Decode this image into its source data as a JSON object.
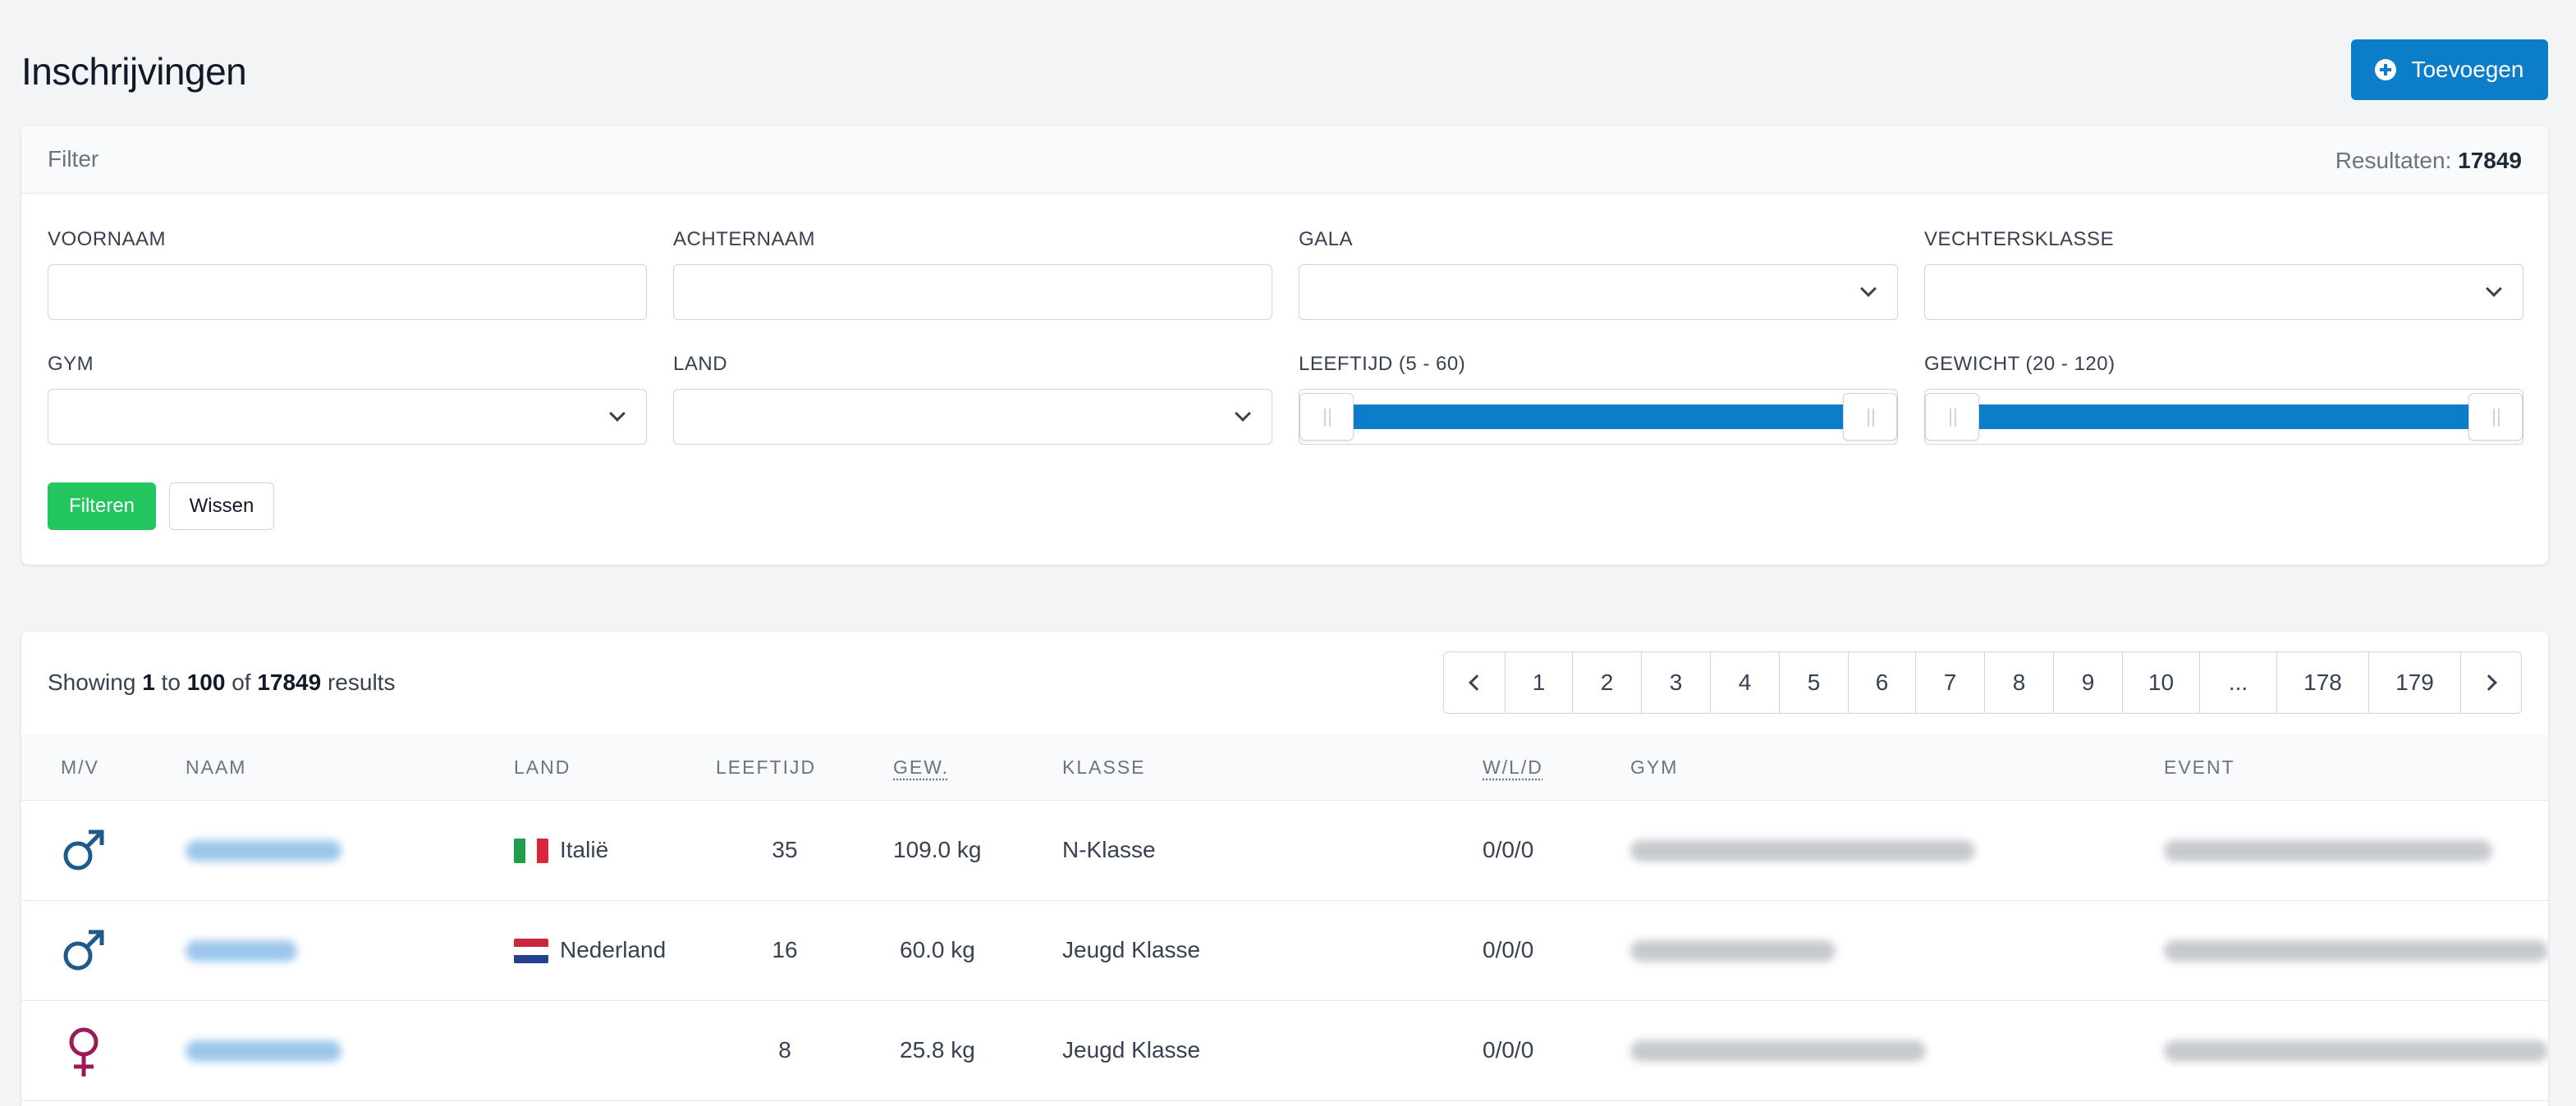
{
  "page": {
    "title": "Inschrijvingen",
    "add_button": "Toevoegen"
  },
  "filter": {
    "title": "Filter",
    "results_label": "Resultaten:",
    "results_count": "17849",
    "fields": {
      "voornaam": "VOORNAAM",
      "achternaam": "ACHTERNAAM",
      "gala": "GALA",
      "vechtersklasse": "VECHTERSKLASSE",
      "gym": "GYM",
      "land": "LAND",
      "leeftijd": "LEEFTIJD (5 - 60)",
      "gewicht": "GEWICHT (20 - 120)"
    },
    "leeftijd_range": {
      "min": 5,
      "max": 60
    },
    "gewicht_range": {
      "min": 20,
      "max": 120
    },
    "filter_button": "Filteren",
    "clear_button": "Wissen"
  },
  "table": {
    "showing_prefix": "Showing",
    "showing_from": "1",
    "showing_to_word": "to",
    "showing_to": "100",
    "showing_of_word": "of",
    "showing_total": "17849",
    "showing_suffix": "results",
    "pages": [
      "1",
      "2",
      "3",
      "4",
      "5",
      "6",
      "7",
      "8",
      "9",
      "10",
      "...",
      "178",
      "179"
    ],
    "columns": {
      "mv": "M/V",
      "naam": "NAAM",
      "land": "LAND",
      "leeftijd": "LEEFTIJD",
      "gew": "GEW.",
      "klasse": "KLASSE",
      "wld": "W/L/D",
      "gym": "GYM",
      "event": "EVENT"
    },
    "rows": [
      {
        "gender": "male",
        "gender_icon": "male-symbol-icon",
        "land": "Italië",
        "flag": "italy-flag-icon",
        "leeftijd": "35",
        "gewicht": "109.0 kg",
        "klasse": "N-Klasse",
        "wld": "0/0/0"
      },
      {
        "gender": "male",
        "gender_icon": "male-symbol-icon",
        "land": "Nederland",
        "flag": "netherlands-flag-icon",
        "leeftijd": "16",
        "gewicht": "60.0 kg",
        "klasse": "Jeugd Klasse",
        "wld": "0/0/0"
      },
      {
        "gender": "female",
        "gender_icon": "female-symbol-icon",
        "land": "",
        "flag": "",
        "leeftijd": "8",
        "gewicht": "25.8 kg",
        "klasse": "Jeugd Klasse",
        "wld": "0/0/0"
      }
    ]
  },
  "colors": {
    "primary": "#0b7dc9",
    "success": "#22c55e",
    "male": "#1e5a8a",
    "female": "#9b1b5a"
  }
}
